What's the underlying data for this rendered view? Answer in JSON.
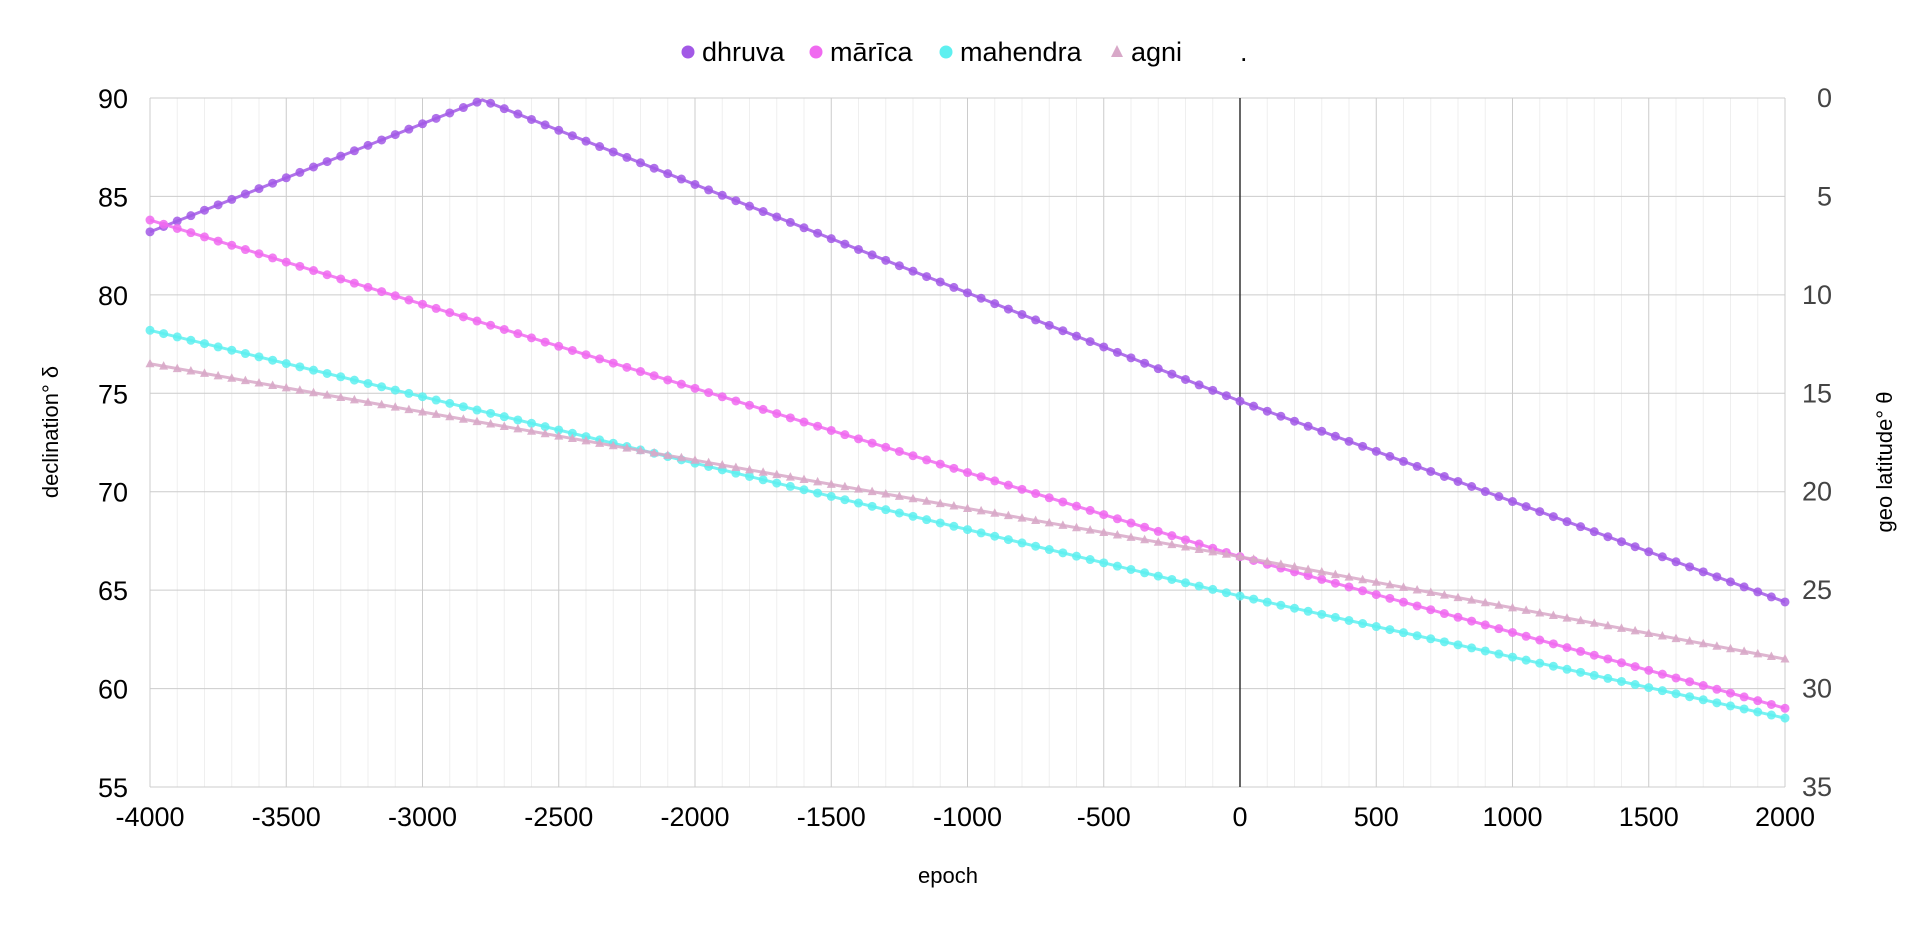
{
  "chart_data": {
    "type": "line",
    "xlabel": "epoch",
    "ylabel": "declination° δ",
    "y2label": "geo latitude° θ",
    "xlim": [
      -4000,
      2000
    ],
    "ylim": [
      55,
      90
    ],
    "y2lim": [
      0,
      35
    ],
    "y2_inverted": true,
    "x_ticks": [
      -4000,
      -3500,
      -3000,
      -2500,
      -2000,
      -1500,
      -1000,
      -500,
      0,
      500,
      1000,
      1500,
      2000
    ],
    "y_ticks": [
      55,
      60,
      65,
      70,
      75,
      80,
      85,
      90
    ],
    "y2_ticks": [
      0,
      5,
      10,
      15,
      20,
      25,
      30,
      35
    ],
    "grid": true,
    "legend_position": "top-center",
    "legend_extra": ".",
    "series": [
      {
        "name": "dhruva",
        "marker": "circle",
        "color": "#a259e6",
        "points": [
          [
            -4000,
            83.2
          ],
          [
            -2780,
            89.9
          ],
          [
            0,
            74.6
          ],
          [
            2000,
            64.4
          ]
        ]
      },
      {
        "name": "mārīca",
        "marker": "circle",
        "color": "#f06af0",
        "points": [
          [
            -4000,
            83.8
          ],
          [
            0,
            66.7
          ],
          [
            2000,
            59.0
          ]
        ]
      },
      {
        "name": "mahendra",
        "marker": "circle",
        "color": "#5ef0f0",
        "points": [
          [
            -4000,
            78.2
          ],
          [
            0,
            64.7
          ],
          [
            2000,
            58.5
          ]
        ]
      },
      {
        "name": "agni",
        "marker": "triangle",
        "color": "#d8a8c8",
        "points": [
          [
            -4000,
            76.5
          ],
          [
            0,
            66.7
          ],
          [
            2000,
            61.5
          ]
        ]
      }
    ]
  }
}
